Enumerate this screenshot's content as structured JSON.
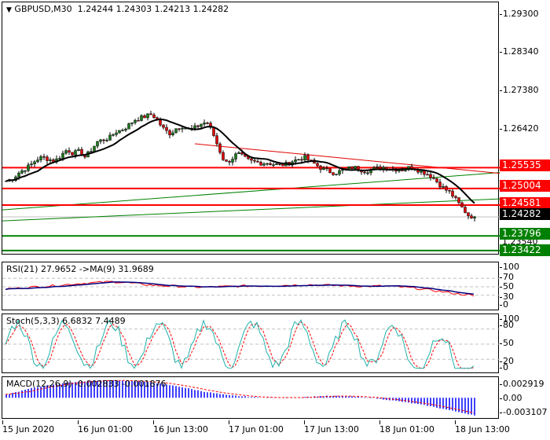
{
  "header": {
    "dropdown_icon": "triangle-down-icon",
    "symbol": "GBPUSD,M30",
    "ohlc": "1.24244 1.24303 1.24213 1.24282"
  },
  "colors": {
    "bull_candle": "#1a7a1a",
    "bear_candle": "#e00000",
    "horizontal_red": "#ff0000",
    "trend_green": "#008000",
    "ma_line": "#000000",
    "rsi_line": "#000080",
    "rsi_signal": "#ff0000",
    "stoch_main": "#20b2aa",
    "stoch_signal": "#ff0000",
    "macd_hist": "#0000ff",
    "macd_signal": "#ff0000",
    "bid_label_bg": "#000000",
    "green_label_bg": "#008000",
    "red_label_bg": "#ff0000"
  },
  "price_axis": {
    "ticks": [
      "1.29300",
      "1.28340",
      "1.27380",
      "1.26420"
    ],
    "labels": [
      {
        "value": "1.25535",
        "color": "red"
      },
      {
        "value": "1.25004",
        "color": "red"
      },
      {
        "value": "1.24581",
        "color": "red"
      },
      {
        "value": "1.24282",
        "color": "black"
      },
      {
        "value": "1.23796",
        "color": "green"
      },
      {
        "value": "1.23540",
        "color": "hidden"
      },
      {
        "value": "1.23422",
        "color": "green"
      }
    ]
  },
  "rsi": {
    "title": "RSI(21) 27.9652  ->MA(9) 31.9689",
    "ticks": [
      "100",
      "70",
      "50",
      "30",
      "0"
    ]
  },
  "stoch": {
    "title": "Stoch(5,3,3) 6.6832 7.4489",
    "ticks": [
      "100",
      "80",
      "50",
      "20",
      "0"
    ]
  },
  "macd": {
    "title": "MACD(12,26,9) -0.002833 -0.001876",
    "ticks": [
      "0.002919",
      "0.00",
      "-0.003107"
    ]
  },
  "time_axis": {
    "labels": [
      "15 Jun 2020",
      "16 Jun 01:00",
      "16 Jun 13:00",
      "17 Jun 01:00",
      "17 Jun 13:00",
      "18 Jun 01:00",
      "18 Jun 13:00"
    ]
  },
  "chart_data": [
    {
      "type": "candlestick",
      "title": "GBPUSD,M30",
      "ylim": [
        1.233,
        1.2975
      ],
      "y_ticks": [
        1.293,
        1.2834,
        1.2738,
        1.2642
      ],
      "x_labels": [
        "15 Jun 2020",
        "16 Jun 01:00",
        "16 Jun 13:00",
        "17 Jun 01:00",
        "17 Jun 13:00",
        "18 Jun 01:00",
        "18 Jun 13:00"
      ],
      "last_ohlc": {
        "open": 1.24244,
        "high": 1.24303,
        "low": 1.24213,
        "close": 1.24282
      },
      "horizontal_lines": [
        {
          "price": 1.25535,
          "color": "red"
        },
        {
          "price": 1.25004,
          "color": "red"
        },
        {
          "price": 1.24581,
          "color": "red"
        },
        {
          "price": 1.23796,
          "color": "green"
        },
        {
          "price": 1.23422,
          "color": "green"
        }
      ],
      "bid_line": 1.24282,
      "close_series": [
        1.252,
        1.2525,
        1.254,
        1.255,
        1.256,
        1.2575,
        1.258,
        1.2575,
        1.257,
        1.2585,
        1.26,
        1.259,
        1.2595,
        1.258,
        1.26,
        1.262,
        1.2625,
        1.263,
        1.2645,
        1.265,
        1.266,
        1.2675,
        1.268,
        1.2685,
        1.269,
        1.267,
        1.265,
        1.264,
        1.2655,
        1.266,
        1.265,
        1.2655,
        1.2665,
        1.267,
        1.264,
        1.26,
        1.2565,
        1.2575,
        1.259,
        1.258,
        1.257,
        1.2568,
        1.2565,
        1.2566,
        1.2562,
        1.256,
        1.2562,
        1.257,
        1.2575,
        1.258,
        1.257,
        1.256,
        1.255,
        1.2545,
        1.254,
        1.2545,
        1.255,
        1.2555,
        1.255,
        1.2545,
        1.2548,
        1.2552,
        1.2555,
        1.2552,
        1.255,
        1.2548,
        1.2553,
        1.2555,
        1.2545,
        1.254,
        1.253,
        1.2515,
        1.25,
        1.249,
        1.247,
        1.245,
        1.2432,
        1.2428
      ],
      "ma_series_note": "black moving average following price, peaking ~1.2640 around 16 Jun 13:00 then declining to ~1.2495"
    },
    {
      "type": "line",
      "title": "RSI(21) 27.9652 ->MA(9) 31.9689",
      "ylim": [
        0,
        100
      ],
      "levels": [
        70,
        50,
        30
      ],
      "series": [
        {
          "name": "RSI(21)",
          "last": 27.9652
        },
        {
          "name": "MA(9)",
          "last": 31.9689
        }
      ]
    },
    {
      "type": "line",
      "title": "Stoch(5,3,3) 6.6832 7.4489",
      "ylim": [
        0,
        100
      ],
      "levels": [
        80,
        50,
        20
      ],
      "series": [
        {
          "name": "%K",
          "last": 6.6832
        },
        {
          "name": "%D",
          "last": 7.4489
        }
      ]
    },
    {
      "type": "bar",
      "title": "MACD(12,26,9) -0.002833 -0.001876",
      "ylim": [
        -0.003107,
        0.002919
      ],
      "series": [
        {
          "name": "MACD",
          "last": -0.002833
        },
        {
          "name": "Signal",
          "last": -0.001876
        }
      ]
    }
  ]
}
